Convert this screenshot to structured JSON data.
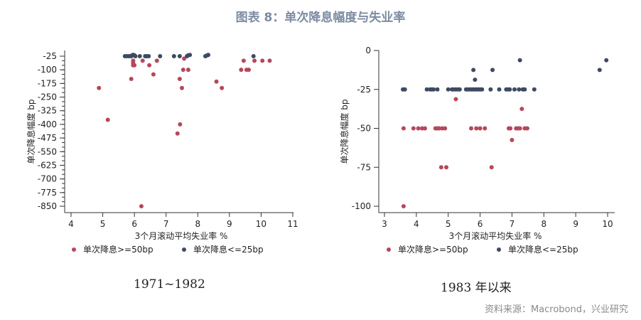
{
  "title": "图表 8：单次降息幅度与失业率",
  "source": "资料来源：Macrobond，兴业研究",
  "colors": {
    "large_cut": "#b5485a",
    "small_cut": "#3d4a63"
  },
  "chart_data": [
    {
      "type": "scatter",
      "subtitle": "1971~1982",
      "xlabel": "3个月滚动平均失业率 %",
      "ylabel": "单次降息幅度 bp",
      "xlim": [
        4,
        11
      ],
      "ylim": [
        -850,
        -25
      ],
      "x_ticks": [
        "4",
        "5",
        "6",
        "7",
        "8",
        "9",
        "10",
        "11"
      ],
      "y_ticks": [
        "-25",
        "-100",
        "-175",
        "-250",
        "-325",
        "-400",
        "-475",
        "-550",
        "-625",
        "-700",
        "-775",
        "-850"
      ],
      "legend_position": "bottom",
      "series": [
        {
          "name": "单次降息>=50bp",
          "color": "#b5485a",
          "points": [
            [
              4.88,
              -200
            ],
            [
              5.16,
              -375
            ],
            [
              5.9,
              -150
            ],
            [
              5.96,
              -50
            ],
            [
              5.96,
              -62
            ],
            [
              5.96,
              -75
            ],
            [
              6.0,
              -75
            ],
            [
              6.26,
              -50
            ],
            [
              6.47,
              -75
            ],
            [
              6.6,
              -125
            ],
            [
              6.71,
              -50
            ],
            [
              6.22,
              -850
            ],
            [
              7.36,
              -450
            ],
            [
              7.44,
              -400
            ],
            [
              7.43,
              -150
            ],
            [
              7.5,
              -200
            ],
            [
              7.57,
              -38
            ],
            [
              7.54,
              -100
            ],
            [
              7.7,
              -100
            ],
            [
              8.59,
              -165
            ],
            [
              8.76,
              -200
            ],
            [
              9.37,
              -100
            ],
            [
              9.45,
              -50
            ],
            [
              9.54,
              -100
            ],
            [
              9.61,
              -100
            ],
            [
              9.79,
              -50
            ],
            [
              10.04,
              -50
            ],
            [
              10.27,
              -50
            ]
          ]
        },
        {
          "name": "单次降息<=25bp",
          "color": "#3d4a63",
          "points": [
            [
              5.7,
              -25
            ],
            [
              5.76,
              -25
            ],
            [
              5.82,
              -25
            ],
            [
              5.88,
              -25
            ],
            [
              5.9,
              -25
            ],
            [
              5.93,
              -20
            ],
            [
              5.95,
              -18
            ],
            [
              5.97,
              -18
            ],
            [
              6.0,
              -20
            ],
            [
              6.03,
              -25
            ],
            [
              6.17,
              -25
            ],
            [
              6.34,
              -25
            ],
            [
              6.39,
              -25
            ],
            [
              6.45,
              -25
            ],
            [
              6.81,
              -25
            ],
            [
              7.25,
              -25
            ],
            [
              7.43,
              -25
            ],
            [
              7.66,
              -25
            ],
            [
              7.7,
              -20
            ],
            [
              7.75,
              -18
            ],
            [
              8.24,
              -25
            ],
            [
              8.3,
              -20
            ],
            [
              8.33,
              -18
            ],
            [
              9.76,
              -25
            ]
          ]
        }
      ]
    },
    {
      "type": "scatter",
      "subtitle": "1983 年以来",
      "xlabel": "3个月滚动平均失业率 %",
      "ylabel": "单次降息幅度 bp",
      "xlim": [
        3,
        10
      ],
      "ylim": [
        -100,
        0
      ],
      "x_ticks": [
        "3",
        "4",
        "5",
        "6",
        "7",
        "8",
        "9",
        "10"
      ],
      "y_ticks": [
        "0",
        "-25",
        "-50",
        "-75",
        "-100"
      ],
      "legend_position": "bottom",
      "series": [
        {
          "name": "单次降息>=50bp",
          "color": "#b5485a",
          "points": [
            [
              3.6,
              -50
            ],
            [
              3.91,
              -50
            ],
            [
              4.06,
              -50
            ],
            [
              4.18,
              -50
            ],
            [
              4.27,
              -50
            ],
            [
              4.6,
              -50
            ],
            [
              4.66,
              -50
            ],
            [
              4.71,
              -50
            ],
            [
              4.81,
              -50
            ],
            [
              4.9,
              -50
            ],
            [
              5.72,
              -50
            ],
            [
              5.88,
              -50
            ],
            [
              6.0,
              -50
            ],
            [
              6.15,
              -50
            ],
            [
              6.9,
              -50
            ],
            [
              6.95,
              -50
            ],
            [
              7.13,
              -50
            ],
            [
              7.19,
              -50
            ],
            [
              7.25,
              -50
            ],
            [
              7.4,
              -50
            ],
            [
              7.48,
              -50
            ],
            [
              5.24,
              -31.25
            ],
            [
              7.31,
              -37.5
            ],
            [
              7.0,
              -57.5
            ],
            [
              4.78,
              -75
            ],
            [
              4.94,
              -75
            ],
            [
              6.36,
              -75
            ],
            [
              3.6,
              -100
            ]
          ]
        },
        {
          "name": "单次降息<=25bp",
          "color": "#3d4a63",
          "points": [
            [
              3.58,
              -25
            ],
            [
              3.64,
              -25
            ],
            [
              4.33,
              -25
            ],
            [
              4.43,
              -25
            ],
            [
              4.49,
              -25
            ],
            [
              4.54,
              -25
            ],
            [
              4.66,
              -25
            ],
            [
              5.0,
              -25
            ],
            [
              5.12,
              -25
            ],
            [
              5.18,
              -25
            ],
            [
              5.24,
              -25
            ],
            [
              5.3,
              -25
            ],
            [
              5.36,
              -25
            ],
            [
              5.56,
              -25
            ],
            [
              5.61,
              -25
            ],
            [
              5.67,
              -25
            ],
            [
              5.73,
              -25
            ],
            [
              5.79,
              -25
            ],
            [
              5.85,
              -25
            ],
            [
              5.9,
              -25
            ],
            [
              5.96,
              -25
            ],
            [
              6.01,
              -25
            ],
            [
              6.06,
              -25
            ],
            [
              6.33,
              -25
            ],
            [
              6.6,
              -25
            ],
            [
              6.82,
              -25
            ],
            [
              6.87,
              -25
            ],
            [
              6.93,
              -25
            ],
            [
              7.08,
              -25
            ],
            [
              7.22,
              -25
            ],
            [
              7.34,
              -25
            ],
            [
              7.4,
              -25
            ],
            [
              7.7,
              -25
            ],
            [
              5.79,
              -12.5
            ],
            [
              5.84,
              -18.75
            ],
            [
              6.39,
              -12.5
            ],
            [
              7.25,
              -6.25
            ],
            [
              9.75,
              -12.5
            ],
            [
              9.96,
              -6.25
            ]
          ]
        }
      ]
    }
  ]
}
